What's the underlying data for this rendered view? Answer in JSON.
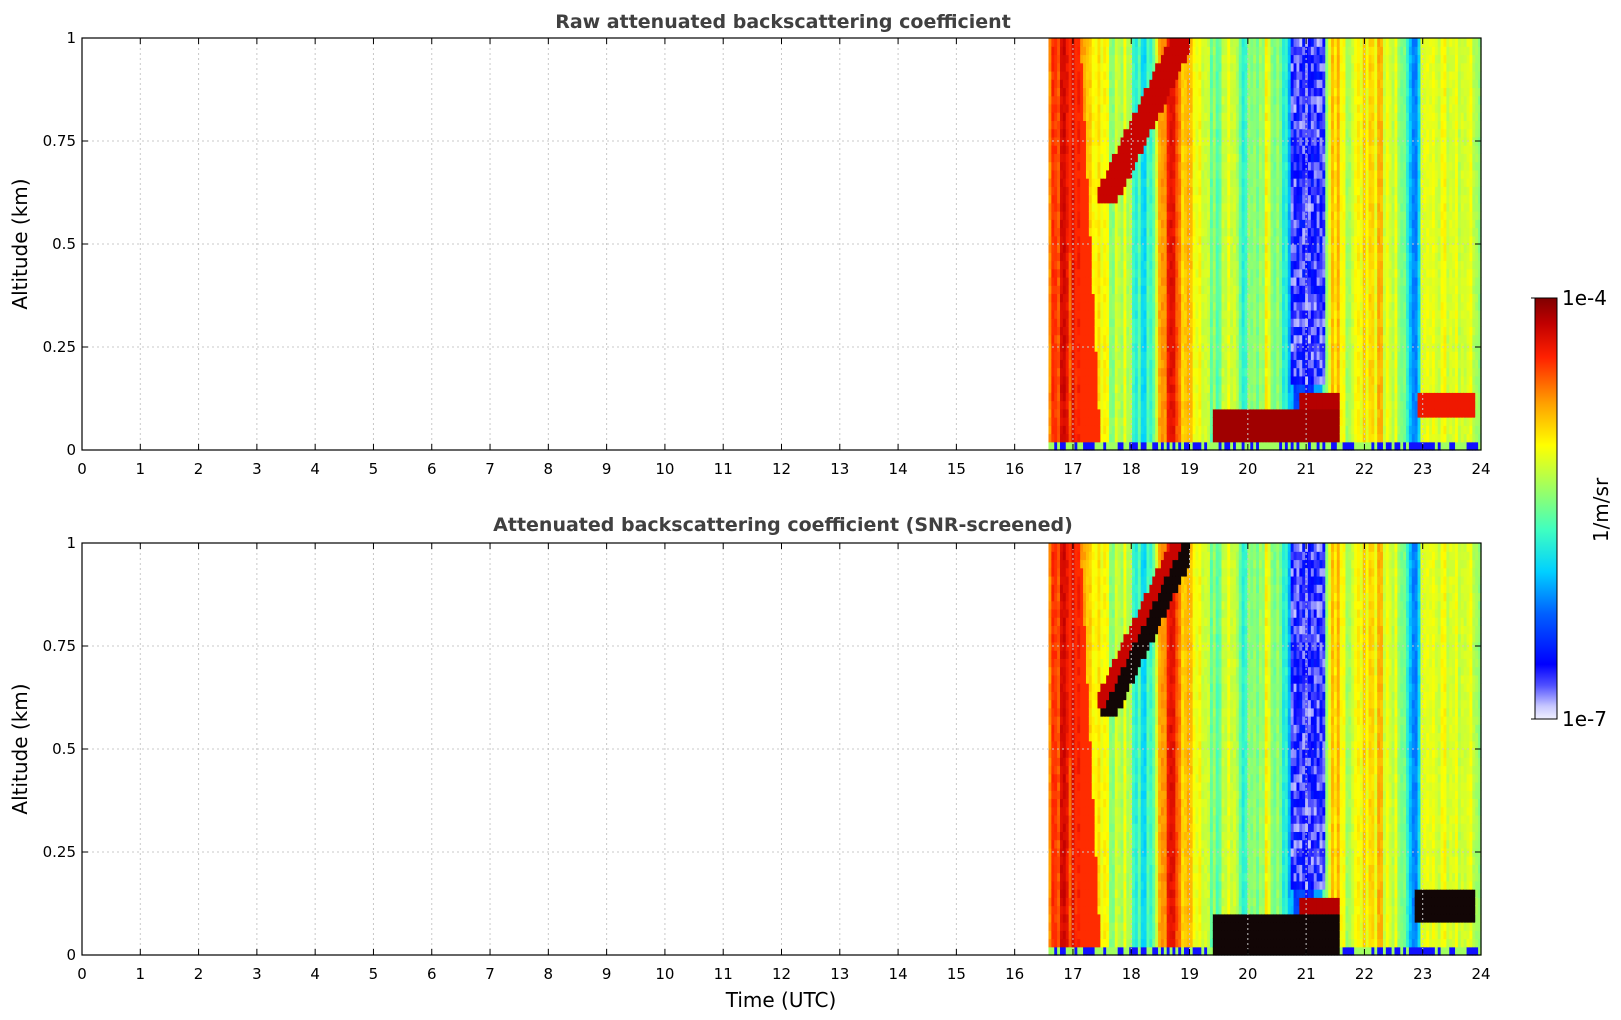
{
  "chart_data": [
    {
      "type": "heatmap",
      "title": "Raw attenuated backscattering coefficient",
      "xlabel": "",
      "ylabel": "Altitude (km)",
      "xlim": [
        0,
        24
      ],
      "ylim": [
        0,
        1
      ],
      "xticks": [
        "0",
        "1",
        "2",
        "3",
        "4",
        "5",
        "6",
        "7",
        "8",
        "9",
        "10",
        "11",
        "12",
        "13",
        "14",
        "15",
        "16",
        "17",
        "18",
        "19",
        "20",
        "21",
        "22",
        "23",
        "24"
      ],
      "yticks": [
        "0",
        "0.25",
        "0.5",
        "0.75",
        "1"
      ],
      "grid": true,
      "data_start_time": 16.58,
      "data_end_time": 24,
      "features": [
        {
          "name": "low-level strong layer",
          "time": [
            19.4,
            21.6
          ],
          "altitude": [
            0.02,
            0.1
          ],
          "level": "max"
        },
        {
          "name": "elevated layer",
          "time": [
            22.8,
            23.9
          ],
          "altitude": [
            0.07,
            0.14
          ],
          "level": "high"
        },
        {
          "name": "rising aerosol plume",
          "time": [
            17.4,
            18.9
          ],
          "altitude": [
            0.6,
            1.0
          ],
          "level": "max"
        },
        {
          "name": "clear-air gap",
          "time": [
            20.7,
            21.4
          ],
          "altitude": [
            0.15,
            1.0
          ],
          "level": "min"
        }
      ]
    },
    {
      "type": "heatmap",
      "title": "Attenuated backscattering coefficient (SNR-screened)",
      "xlabel": "Time (UTC)",
      "ylabel": "Altitude (km)",
      "xlim": [
        0,
        24
      ],
      "ylim": [
        0,
        1
      ],
      "xticks": [
        "0",
        "1",
        "2",
        "3",
        "4",
        "5",
        "6",
        "7",
        "8",
        "9",
        "10",
        "11",
        "12",
        "13",
        "14",
        "15",
        "16",
        "17",
        "18",
        "19",
        "20",
        "21",
        "22",
        "23",
        "24"
      ],
      "yticks": [
        "0",
        "0.25",
        "0.5",
        "0.75",
        "1"
      ],
      "grid": true,
      "data_start_time": 16.58,
      "data_end_time": 24,
      "features": [
        {
          "name": "screened low layer",
          "time": [
            19.4,
            21.6
          ],
          "altitude": [
            0.0,
            0.1
          ],
          "level": "screened"
        },
        {
          "name": "screened elevated layer",
          "time": [
            22.8,
            23.9
          ],
          "altitude": [
            0.07,
            0.16
          ],
          "level": "screened"
        },
        {
          "name": "screened plume",
          "time": [
            17.4,
            18.9
          ],
          "altitude": [
            0.58,
            1.0
          ],
          "level": "screened"
        },
        {
          "name": "clear-air gap",
          "time": [
            20.7,
            21.4
          ],
          "altitude": [
            0.15,
            1.0
          ],
          "level": "min"
        }
      ]
    }
  ],
  "colorbar": {
    "label": "1/m/sr",
    "max_label": "1e-4",
    "min_label": "1e-7",
    "range": [
      1e-07,
      0.0001
    ],
    "scale": "log",
    "colormap": "jet"
  },
  "colors": {
    "screened": "#120606",
    "grid": "#c8c8c8",
    "title": "#404040"
  }
}
